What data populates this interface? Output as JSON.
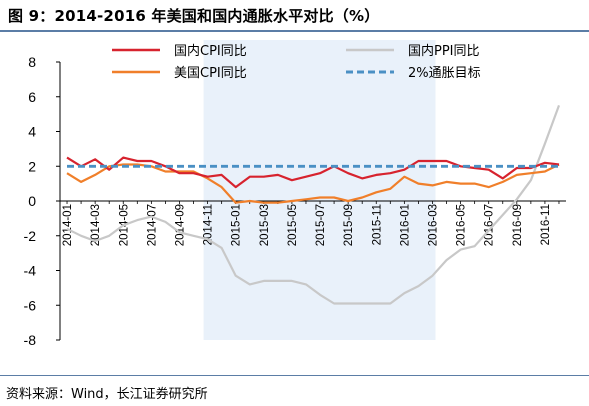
{
  "figure_title": "图 9：2014-2016 年美国和国内通胀水平对比（%）",
  "source_note": "资料来源：Wind，长江证券研究所",
  "colors": {
    "cn_cpi": "#d7232e",
    "cn_ppi": "#c8c8c8",
    "us_cpi": "#f07f2a",
    "target": "#4a90c4",
    "shade": "#e9f1fa",
    "rule": "#5b7da6"
  },
  "chart_data": {
    "type": "line",
    "title": "",
    "xlabel": "",
    "ylabel": "",
    "ylim": [
      -8,
      8
    ],
    "yticks": [
      -8,
      -6,
      -4,
      -2,
      0,
      2,
      4,
      6,
      8
    ],
    "x_tick_labels": [
      "2014-01",
      "2014-03",
      "2014-05",
      "2014-07",
      "2014-09",
      "2014-11",
      "2015-01",
      "2015-03",
      "2015-05",
      "2015-07",
      "2015-09",
      "2015-11",
      "2016-01",
      "2016-03",
      "2016-05",
      "2016-07",
      "2016-09",
      "2016-11"
    ],
    "shaded_range": [
      "2014-11",
      "2016-03"
    ],
    "legend_position": "top",
    "series": [
      {
        "name": "国内CPI同比",
        "key": "cn_cpi",
        "values": [
          2.5,
          2.0,
          2.4,
          1.8,
          2.5,
          2.3,
          2.3,
          2.0,
          1.6,
          1.6,
          1.4,
          1.5,
          0.8,
          1.4,
          1.4,
          1.5,
          1.2,
          1.4,
          1.6,
          2.0,
          1.6,
          1.3,
          1.5,
          1.6,
          1.8,
          2.3,
          2.3,
          2.3,
          2.0,
          1.9,
          1.8,
          1.3,
          1.9,
          1.9,
          2.2,
          2.1
        ]
      },
      {
        "name": "国内PPI同比",
        "key": "cn_ppi",
        "values": [
          -1.6,
          -2.0,
          -2.3,
          -2.0,
          -1.4,
          -1.1,
          -0.9,
          -1.2,
          -1.8,
          -2.0,
          -2.2,
          -2.7,
          -4.3,
          -4.8,
          -4.6,
          -4.6,
          -4.6,
          -4.8,
          -5.4,
          -5.9,
          -5.9,
          -5.9,
          -5.9,
          -5.9,
          -5.3,
          -4.9,
          -4.3,
          -3.4,
          -2.8,
          -2.6,
          -1.7,
          -0.8,
          0.1,
          1.2,
          3.3,
          5.5
        ]
      },
      {
        "name": "美国CPI同比",
        "key": "us_cpi",
        "values": [
          1.6,
          1.1,
          1.5,
          2.0,
          2.1,
          2.1,
          2.0,
          1.7,
          1.7,
          1.7,
          1.3,
          0.8,
          -0.1,
          0.0,
          -0.1,
          -0.1,
          0.0,
          0.1,
          0.2,
          0.2,
          0.0,
          0.2,
          0.5,
          0.7,
          1.4,
          1.0,
          0.9,
          1.1,
          1.0,
          1.0,
          0.8,
          1.1,
          1.5,
          1.6,
          1.7,
          2.1
        ]
      },
      {
        "name": "2%通胀目标",
        "key": "target",
        "values": [
          2,
          2,
          2,
          2,
          2,
          2,
          2,
          2,
          2,
          2,
          2,
          2,
          2,
          2,
          2,
          2,
          2,
          2,
          2,
          2,
          2,
          2,
          2,
          2,
          2,
          2,
          2,
          2,
          2,
          2,
          2,
          2,
          2,
          2,
          2,
          2
        ]
      }
    ]
  }
}
